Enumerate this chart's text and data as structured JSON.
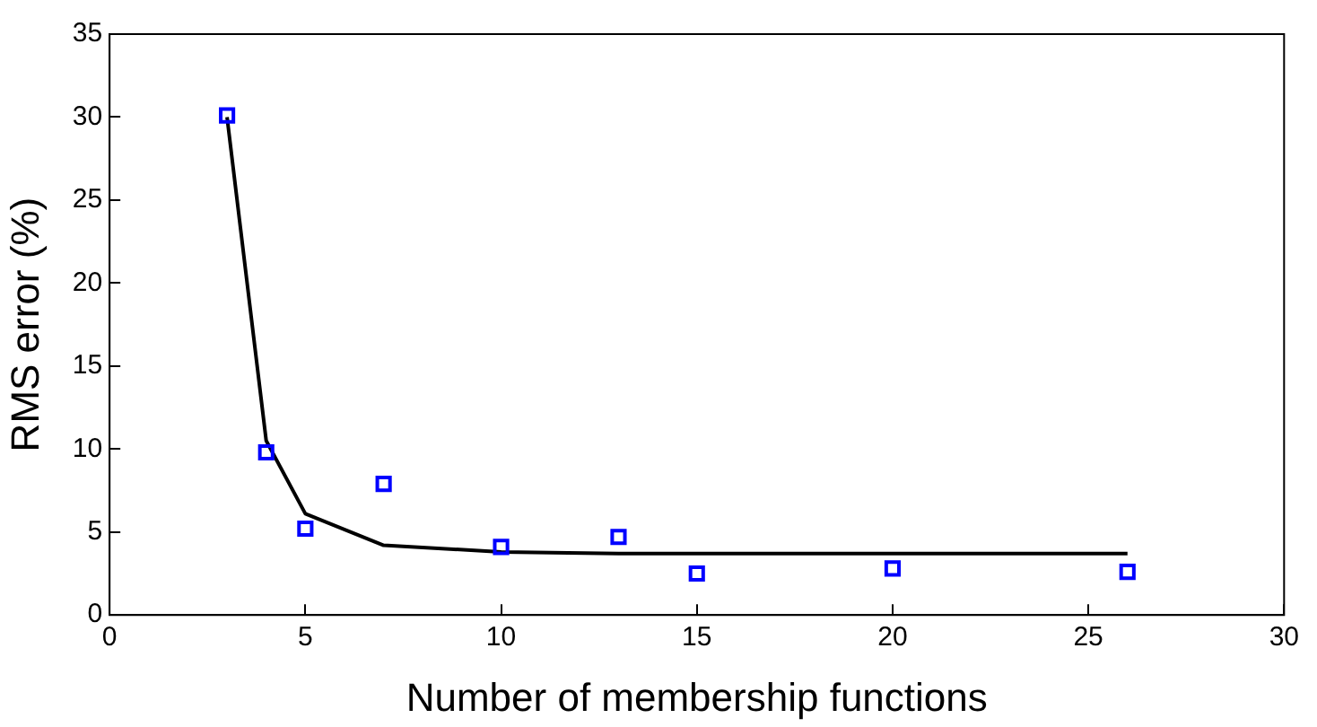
{
  "chart_data": {
    "type": "scatter",
    "xlabel": "Number of membership functions",
    "ylabel": "RMS error (%)",
    "xlim": [
      0,
      30
    ],
    "xticks": [
      0,
      5,
      10,
      15,
      20,
      25,
      30
    ],
    "ylim": [
      0,
      35
    ],
    "yticks": [
      0,
      5,
      10,
      15,
      20,
      25,
      30,
      35
    ],
    "grid": false,
    "legend": false,
    "series": [
      {
        "color": "#0000ff",
        "marker": "square",
        "x": [
          3,
          4,
          5,
          7,
          10,
          13,
          15,
          20,
          26
        ],
        "values": [
          30.1,
          9.8,
          5.2,
          7.9,
          4.1,
          4.7,
          2.5,
          2.8,
          2.6
        ]
      },
      {
        "type": "line",
        "color": "#000000",
        "marker": "none",
        "line_style": "solid",
        "x": [
          3,
          4,
          5,
          7,
          10,
          13,
          15,
          20,
          26
        ],
        "values": [
          30,
          10.5,
          6.1,
          4.2,
          3.8,
          3.7,
          3.7,
          3.7,
          3.7
        ]
      }
    ]
  }
}
